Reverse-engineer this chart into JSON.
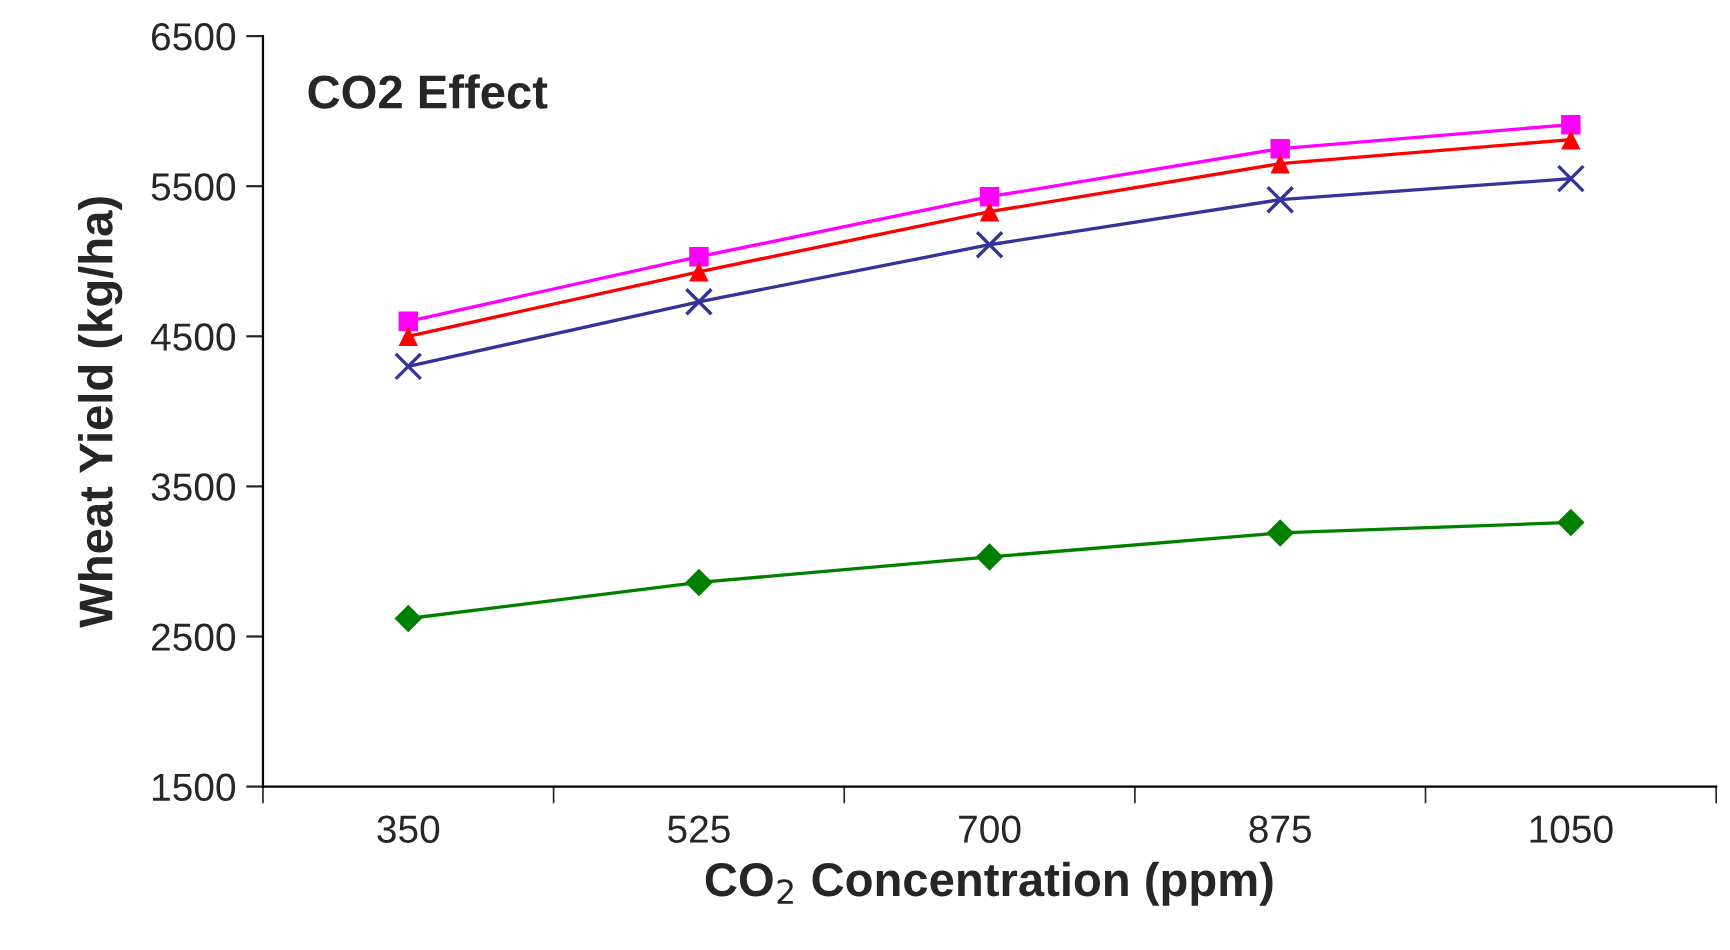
{
  "chart_data": {
    "type": "line",
    "title": "CO2 Effect",
    "xlabel": "CO$_{2}$ Concentration (ppm)",
    "ylabel": "Wheat Yield (kg/ha)",
    "categories": [
      "350",
      "525",
      "700",
      "875",
      "1050"
    ],
    "series": [
      {
        "color": "#ff00ff",
        "marker": "square",
        "values": [
          4600,
          5030,
          5430,
          5750,
          5910
        ]
      },
      {
        "color": "#ff0000",
        "marker": "triangle",
        "values": [
          4500,
          4930,
          5330,
          5650,
          5810
        ]
      },
      {
        "color": "#333399",
        "marker": "cross",
        "values": [
          4300,
          4730,
          5110,
          5410,
          5550
        ]
      },
      {
        "color": "#008000",
        "marker": "diamond",
        "values": [
          2620,
          2860,
          3030,
          3190,
          3260
        ]
      }
    ],
    "ylim": [
      1500,
      6500
    ],
    "yticks": [
      1500,
      2500,
      3500,
      4500,
      5500,
      6500
    ],
    "grid": false
  }
}
